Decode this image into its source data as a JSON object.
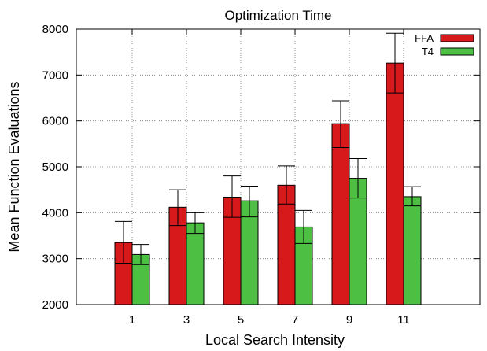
{
  "chart_data": {
    "type": "bar",
    "title": "Optimization Time",
    "xlabel": "Local Search Intensity",
    "ylabel": "Mean Function Evaluations",
    "categories": [
      "1",
      "3",
      "5",
      "7",
      "9",
      "11"
    ],
    "ylim": [
      2000,
      8000
    ],
    "yticks": [
      2000,
      3000,
      4000,
      5000,
      6000,
      7000,
      8000
    ],
    "grid": true,
    "legend_position": "top-right",
    "series": [
      {
        "name": "FFA",
        "color": "#d7191c",
        "values": [
          3350,
          4120,
          4340,
          4600,
          5940,
          7260
        ],
        "error_low": [
          2900,
          3720,
          3900,
          4190,
          5420,
          6610
        ],
        "error_high": [
          3810,
          4500,
          4800,
          5020,
          6440,
          7910
        ]
      },
      {
        "name": "T4",
        "color": "#4dc043",
        "values": [
          3090,
          3780,
          4260,
          3690,
          4750,
          4350
        ],
        "error_low": [
          2870,
          3550,
          3910,
          3330,
          4320,
          4150
        ],
        "error_high": [
          3310,
          4000,
          4580,
          4050,
          5180,
          4570
        ]
      }
    ]
  }
}
